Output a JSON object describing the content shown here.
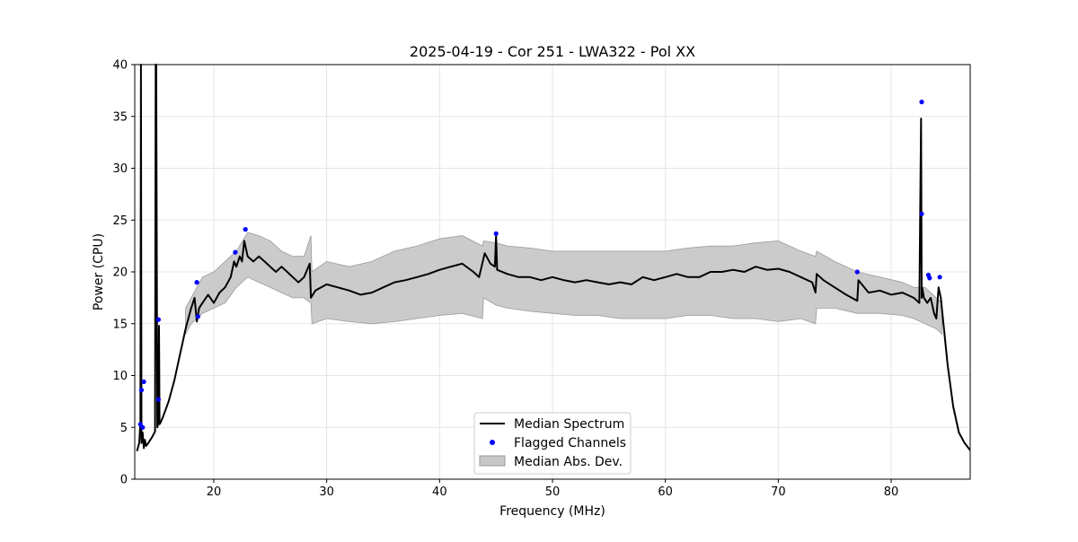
{
  "chart_data": {
    "type": "line",
    "title": "2025-04-19 - Cor 251 - LWA322 - Pol XX",
    "xlabel": "Frequency (MHz)",
    "ylabel": "Power (CPU)",
    "xlim": [
      13,
      87
    ],
    "ylim": [
      0,
      40
    ],
    "xticks": [
      20,
      30,
      40,
      50,
      60,
      70,
      80
    ],
    "yticks": [
      0,
      5,
      10,
      15,
      20,
      25,
      30,
      35,
      40
    ],
    "grid": true,
    "legend_position": "bottom-center",
    "legend": [
      "Median Spectrum",
      "Flagged Channels",
      "Median Abs. Dev."
    ],
    "colors": {
      "median": "#000000",
      "flagged": "#0000ff",
      "band": "#c8c8c8",
      "band_edge": "#9a9a9a"
    },
    "series": [
      {
        "name": "Median Spectrum",
        "x": [
          13.2,
          13.4,
          13.5,
          13.55,
          13.6,
          13.7,
          13.8,
          13.9,
          14.0,
          14.2,
          14.5,
          14.8,
          14.85,
          14.9,
          15.0,
          15.1,
          15.15,
          15.2,
          15.3,
          15.5,
          16.0,
          16.5,
          17.0,
          17.5,
          18.0,
          18.3,
          18.5,
          18.7,
          19.0,
          19.5,
          20.0,
          20.5,
          21.0,
          21.5,
          21.8,
          22.0,
          22.3,
          22.5,
          22.7,
          23.0,
          23.5,
          24.0,
          24.5,
          25.0,
          25.5,
          26.0,
          26.5,
          27.0,
          27.5,
          28.0,
          28.5,
          28.6,
          29.0,
          30.0,
          31.0,
          32.0,
          33.0,
          34.0,
          35.0,
          36.0,
          37.0,
          38.0,
          39.0,
          40.0,
          41.0,
          42.0,
          43.0,
          43.5,
          44.0,
          44.5,
          44.9,
          45.0,
          45.1,
          46.0,
          47.0,
          48.0,
          49.0,
          50.0,
          51.0,
          52.0,
          53.0,
          54.0,
          55.0,
          56.0,
          57.0,
          58.0,
          59.0,
          60.0,
          61.0,
          62.0,
          63.0,
          64.0,
          65.0,
          66.0,
          67.0,
          68.0,
          69.0,
          70.0,
          71.0,
          72.0,
          73.0,
          73.3,
          73.4,
          74.0,
          75.0,
          76.0,
          77.0,
          77.1,
          78.0,
          79.0,
          80.0,
          81.0,
          82.0,
          82.5,
          82.65,
          82.7,
          82.75,
          82.9,
          83.2,
          83.5,
          83.8,
          84.0,
          84.2,
          84.4,
          85.0,
          85.5,
          86.0,
          86.5,
          87.0
        ],
        "values": [
          2.7,
          3.5,
          5.5,
          40.0,
          3.5,
          4.5,
          3.0,
          3.8,
          3.2,
          3.5,
          4.0,
          4.6,
          40.0,
          40.0,
          5.0,
          5.5,
          14.8,
          5.3,
          5.5,
          6.0,
          7.5,
          9.5,
          12.0,
          14.5,
          16.5,
          17.5,
          15.2,
          16.5,
          17.0,
          17.8,
          17.0,
          18.0,
          18.5,
          19.5,
          21.0,
          20.5,
          21.5,
          21.0,
          23.0,
          21.5,
          21.0,
          21.5,
          21.0,
          20.5,
          20.0,
          20.5,
          20.0,
          19.5,
          19.0,
          19.5,
          20.8,
          17.5,
          18.2,
          18.8,
          18.5,
          18.2,
          17.8,
          18.0,
          18.5,
          19.0,
          19.2,
          19.5,
          19.8,
          20.2,
          20.5,
          20.8,
          20.0,
          19.5,
          21.8,
          20.8,
          20.5,
          23.5,
          20.2,
          19.8,
          19.5,
          19.5,
          19.2,
          19.5,
          19.2,
          19.0,
          19.2,
          19.0,
          18.8,
          19.0,
          18.8,
          19.5,
          19.2,
          19.5,
          19.8,
          19.5,
          19.5,
          20.0,
          20.0,
          20.2,
          20.0,
          20.5,
          20.2,
          20.3,
          20.0,
          19.5,
          19.0,
          18.0,
          19.8,
          19.2,
          18.5,
          17.8,
          17.2,
          19.2,
          18.0,
          18.2,
          17.8,
          18.0,
          17.5,
          17.0,
          34.8,
          17.5,
          18.5,
          17.5,
          17.0,
          17.5,
          16.0,
          15.5,
          18.5,
          17.5,
          11.0,
          7.0,
          4.5,
          3.5,
          2.8
        ]
      },
      {
        "name": "Flagged Channels",
        "x": [
          13.5,
          13.6,
          13.8,
          15.1,
          15.1,
          18.5,
          18.6,
          21.9,
          22.8,
          45.0,
          77.0,
          82.7,
          82.7,
          83.3,
          83.4,
          84.3,
          13.7
        ],
        "values": [
          5.3,
          8.6,
          9.4,
          7.7,
          15.4,
          19.0,
          15.7,
          21.9,
          24.1,
          23.7,
          20.0,
          36.4,
          25.6,
          19.7,
          19.4,
          19.5,
          5.0
        ]
      },
      {
        "name": "Median Abs. Dev.",
        "x": [
          17.5,
          18.0,
          19.0,
          20.0,
          21.0,
          22.0,
          23.0,
          24.0,
          25.0,
          26.0,
          27.0,
          28.0,
          28.6,
          28.7,
          30.0,
          32.0,
          34.0,
          36.0,
          38.0,
          40.0,
          42.0,
          43.8,
          43.9,
          45.0,
          46.0,
          48.0,
          50.0,
          52.0,
          54.0,
          56.0,
          58.0,
          60.0,
          62.0,
          64.0,
          66.0,
          68.0,
          70.0,
          72.0,
          73.3,
          73.4,
          75.0,
          77.0,
          79.0,
          81.0,
          82.0,
          83.0,
          84.0,
          84.5
        ],
        "upper": [
          16.5,
          17.5,
          19.5,
          20.0,
          21.0,
          22.0,
          23.8,
          23.5,
          23.0,
          22.0,
          21.5,
          21.5,
          23.5,
          20.0,
          21.0,
          20.5,
          21.0,
          22.0,
          22.5,
          23.2,
          23.5,
          22.5,
          23.0,
          22.8,
          22.5,
          22.3,
          22.0,
          22.0,
          22.0,
          22.0,
          22.0,
          22.0,
          22.3,
          22.5,
          22.5,
          22.8,
          23.0,
          22.0,
          21.5,
          22.0,
          21.0,
          20.0,
          19.5,
          19.0,
          18.5,
          18.5,
          17.5,
          17.0
        ],
        "lower": [
          14.0,
          15.0,
          16.0,
          16.5,
          17.0,
          18.5,
          19.5,
          19.0,
          18.5,
          18.0,
          17.5,
          17.5,
          17.0,
          15.0,
          15.5,
          15.2,
          15.0,
          15.2,
          15.5,
          15.8,
          16.0,
          15.5,
          17.5,
          16.8,
          16.5,
          16.2,
          16.0,
          15.8,
          15.8,
          15.5,
          15.5,
          15.5,
          15.8,
          15.8,
          15.5,
          15.5,
          15.2,
          15.5,
          15.0,
          16.5,
          16.5,
          16.0,
          16.0,
          15.8,
          15.5,
          15.0,
          14.5,
          14.0
        ]
      }
    ]
  }
}
